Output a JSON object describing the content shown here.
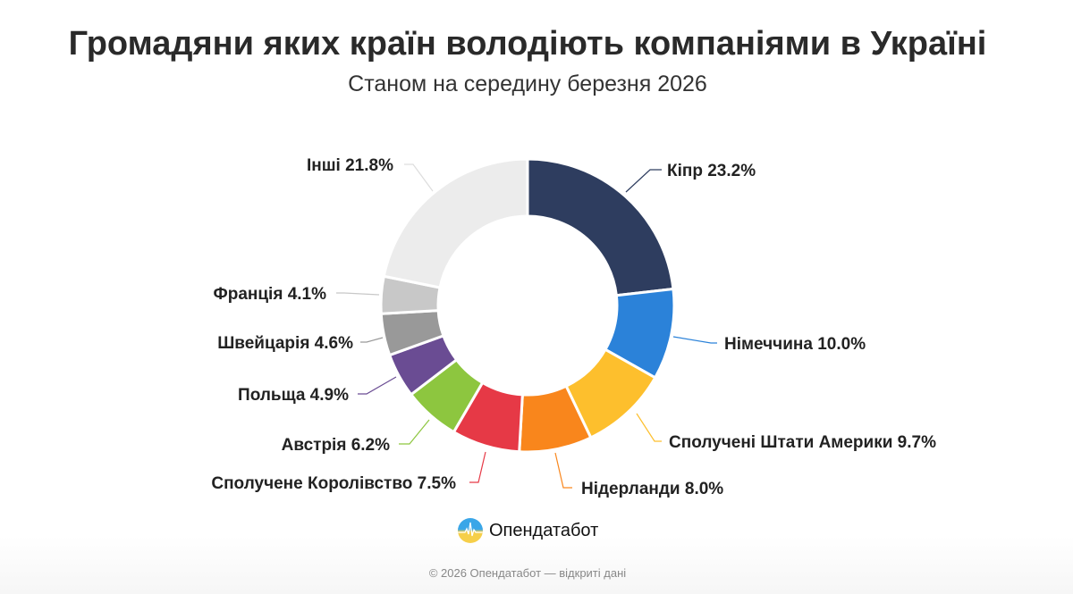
{
  "chart_data": {
    "type": "pie",
    "donut": true,
    "title": "Громадяни яких країн володіють компаніями в Україні",
    "subtitle": "Станом на середину березня 2026",
    "unit": "%",
    "slices": [
      {
        "label": "Кіпр",
        "value": 23.2,
        "color": "#2e3d5f"
      },
      {
        "label": "Німеччина",
        "value": 10.0,
        "color": "#2b82d9"
      },
      {
        "label": "Сполучені Штати Америки",
        "value": 9.7,
        "color": "#fdbf2d"
      },
      {
        "label": "Нідерланди",
        "value": 8.0,
        "color": "#f9861c"
      },
      {
        "label": "Сполучене Королівство",
        "value": 7.5,
        "color": "#e63946"
      },
      {
        "label": "Австрія",
        "value": 6.2,
        "color": "#8dc63f"
      },
      {
        "label": "Польща",
        "value": 4.9,
        "color": "#6a4c93"
      },
      {
        "label": "Швейцарія",
        "value": 4.6,
        "color": "#999999"
      },
      {
        "label": "Франція",
        "value": 4.1,
        "color": "#c8c8c8"
      },
      {
        "label": "Інші",
        "value": 21.8,
        "color": "#ececec"
      }
    ]
  },
  "brand": {
    "name": "Опендатабот"
  },
  "footer": "© 2026 Опендатабот — відкриті дані"
}
